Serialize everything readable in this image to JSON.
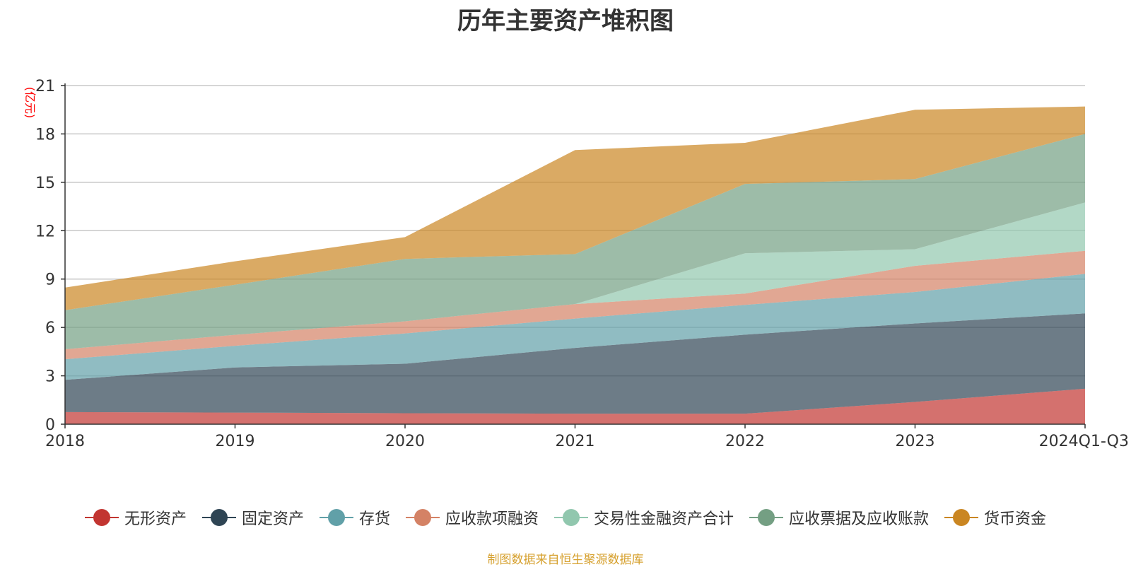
{
  "chart_data": {
    "type": "area",
    "stacked": true,
    "title": "历年主要资产堆积图",
    "ylabel": "(亿元)",
    "xlabel": "",
    "categories": [
      "2018",
      "2019",
      "2020",
      "2021",
      "2022",
      "2023",
      "2024Q1-Q3"
    ],
    "ylim": [
      0,
      21
    ],
    "yticks": [
      0,
      3,
      6,
      9,
      12,
      15,
      18,
      21
    ],
    "grid": true,
    "legend_position": "bottom",
    "series": [
      {
        "name": "无形资产",
        "color": "#c23531",
        "values": [
          0.75,
          0.72,
          0.68,
          0.65,
          0.65,
          1.38,
          2.2
        ]
      },
      {
        "name": "固定资产",
        "color": "#2f4554",
        "values": [
          2.0,
          2.8,
          3.07,
          4.08,
          4.9,
          4.87,
          4.67
        ]
      },
      {
        "name": "存货",
        "color": "#61a0a8",
        "values": [
          1.28,
          1.34,
          1.88,
          1.82,
          1.85,
          1.95,
          2.45
        ]
      },
      {
        "name": "应收款项融资",
        "color": "#d48265",
        "values": [
          0.62,
          0.68,
          0.75,
          0.9,
          0.7,
          1.62,
          1.43
        ]
      },
      {
        "name": "交易性金融资产合计",
        "color": "#91c7ae",
        "values": [
          0,
          0,
          0,
          0,
          2.5,
          1.03,
          3.0
        ]
      },
      {
        "name": "应收票据及应收账款",
        "color": "#749f83",
        "values": [
          2.42,
          3.11,
          3.87,
          3.1,
          4.3,
          4.35,
          4.25
        ]
      },
      {
        "name": "货币资金",
        "color": "#ca8622",
        "values": [
          1.4,
          1.45,
          1.35,
          6.45,
          2.55,
          4.3,
          1.7
        ]
      }
    ]
  },
  "source_note": "制图数据来自恒生聚源数据库"
}
